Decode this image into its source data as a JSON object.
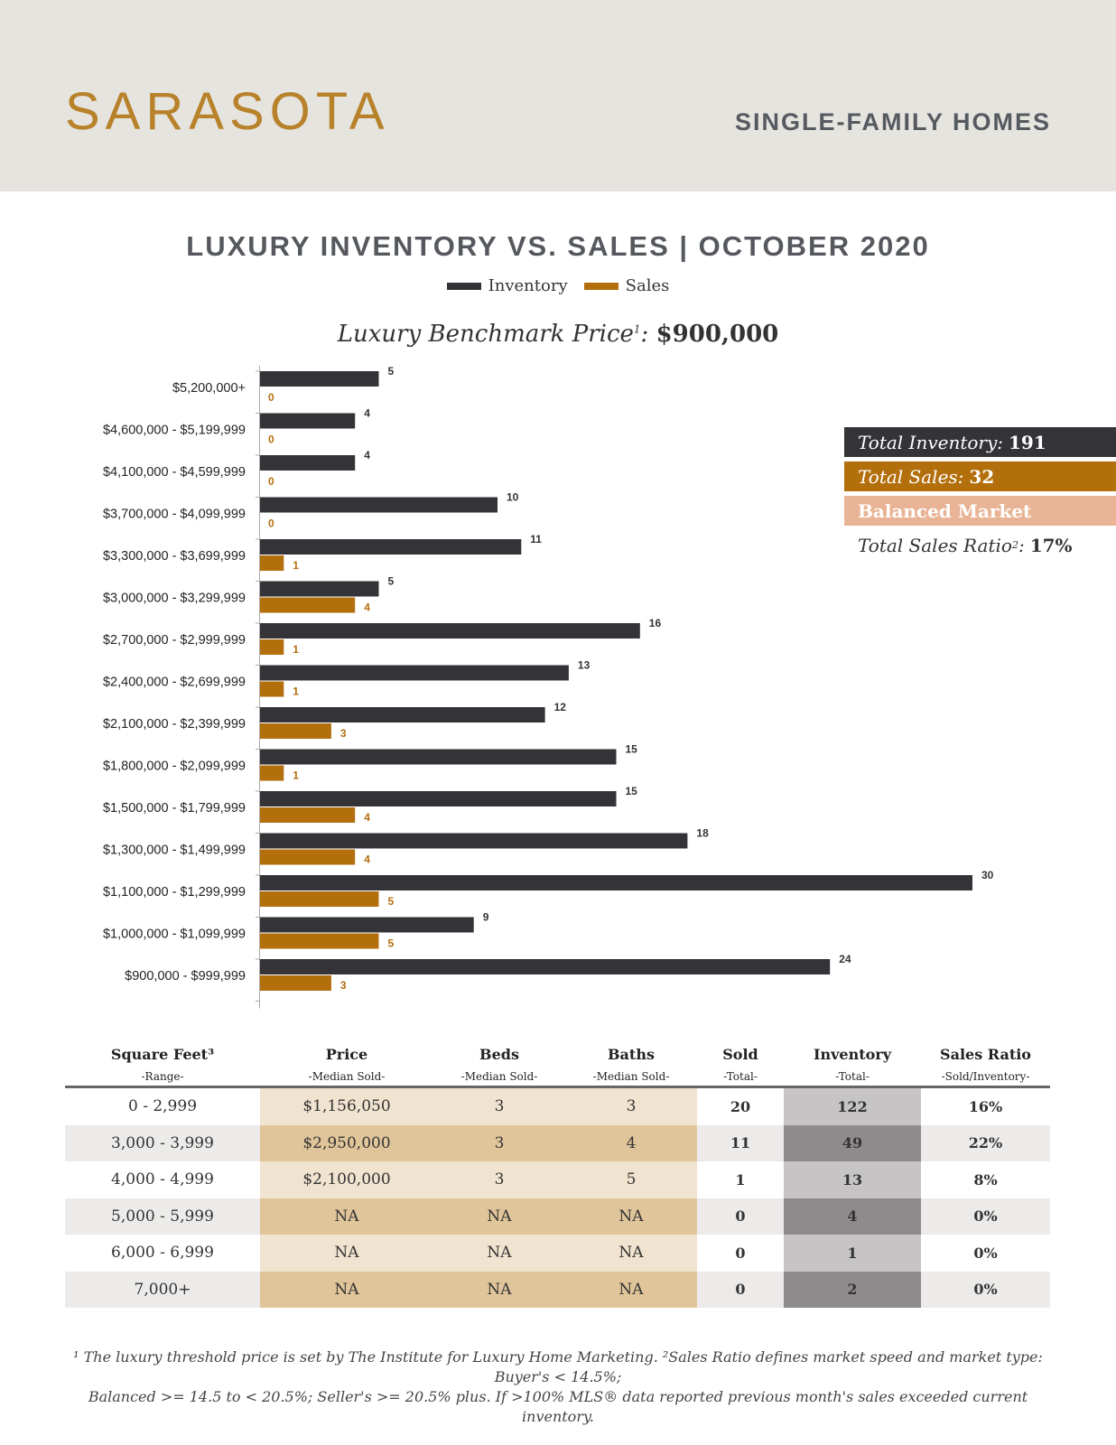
{
  "header": {
    "city": "SARASOTA",
    "segment": "SINGLE-FAMILY HOMES"
  },
  "chart_data": {
    "type": "bar",
    "orientation": "horizontal",
    "title": "LUXURY INVENTORY VS. SALES | OCTOBER 2020",
    "benchmark_label": "Luxury Benchmark Price",
    "benchmark_sup": "1",
    "benchmark_value": "$900,000",
    "categories": [
      "$5,200,000+",
      "$4,600,000 - $5,199,999",
      "$4,100,000 - $4,599,999",
      "$3,700,000 - $4,099,999",
      "$3,300,000 - $3,699,999",
      "$3,000,000 - $3,299,999",
      "$2,700,000 - $2,999,999",
      "$2,400,000 - $2,699,999",
      "$2,100,000 - $2,399,999",
      "$1,800,000 - $2,099,999",
      "$1,500,000 - $1,799,999",
      "$1,300,000 - $1,499,999",
      "$1,100,000 - $1,299,999",
      "$1,000,000 - $1,099,999",
      "$900,000 - $999,999"
    ],
    "series": [
      {
        "name": "Inventory",
        "color": "#333338",
        "values": [
          5,
          4,
          4,
          10,
          11,
          5,
          16,
          13,
          12,
          15,
          15,
          18,
          30,
          9,
          24
        ]
      },
      {
        "name": "Sales",
        "color": "#b36f0c",
        "values": [
          0,
          0,
          0,
          0,
          1,
          4,
          1,
          1,
          3,
          1,
          4,
          4,
          5,
          5,
          3
        ]
      }
    ],
    "xlim": [
      0,
      30
    ],
    "legend": "top"
  },
  "stats": {
    "inventory_label": "Total Inventory:",
    "inventory_value": "191",
    "sales_label": "Total Sales:",
    "sales_value": "32",
    "market": "Balanced Market",
    "ratio_label": "Total Sales Ratio",
    "ratio_sup": "2",
    "ratio_value": "17%"
  },
  "table": {
    "headers": [
      {
        "title": "Square Feet³",
        "sub": "-Range-"
      },
      {
        "title": "Price",
        "sub": "-Median Sold-"
      },
      {
        "title": "Beds",
        "sub": "-Median Sold-"
      },
      {
        "title": "Baths",
        "sub": "-Median Sold-"
      },
      {
        "title": "Sold",
        "sub": "-Total-"
      },
      {
        "title": "Inventory",
        "sub": "-Total-"
      },
      {
        "title": "Sales Ratio",
        "sub": "-Sold/Inventory-"
      }
    ],
    "rows": [
      [
        "0 - 2,999",
        "$1,156,050",
        "3",
        "3",
        "20",
        "122",
        "16%"
      ],
      [
        "3,000 - 3,999",
        "$2,950,000",
        "3",
        "4",
        "11",
        "49",
        "22%"
      ],
      [
        "4,000 - 4,999",
        "$2,100,000",
        "3",
        "5",
        "1",
        "13",
        "8%"
      ],
      [
        "5,000 - 5,999",
        "NA",
        "NA",
        "NA",
        "0",
        "4",
        "0%"
      ],
      [
        "6,000 - 6,999",
        "NA",
        "NA",
        "NA",
        "0",
        "1",
        "0%"
      ],
      [
        "7,000+",
        "NA",
        "NA",
        "NA",
        "0",
        "2",
        "0%"
      ]
    ]
  },
  "footnote": {
    "line1": "¹ The luxury threshold price is set by The Institute for Luxury Home Marketing. ²Sales Ratio defines market speed and market type: Buyer's < 14.5%;",
    "line2": "Balanced >= 14.5 to < 20.5%; Seller's >= 20.5% plus. If >100% MLS® data reported previous month's sales exceeded current inventory."
  }
}
